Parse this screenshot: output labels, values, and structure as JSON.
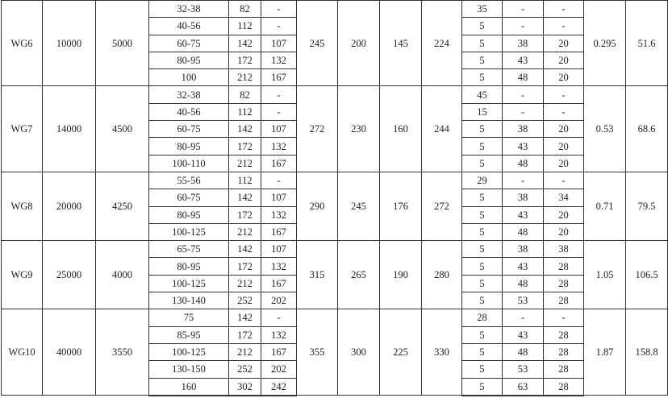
{
  "groups": [
    {
      "model": "WG6",
      "torque": "10000",
      "speed": "5000",
      "c5": "245",
      "c6": "200",
      "c7": "145",
      "c8": "224",
      "c12": "0.295",
      "c13": "51.6",
      "rows": [
        [
          "32-38",
          "82",
          "-",
          "35",
          "-",
          "-"
        ],
        [
          "40-56",
          "112",
          "-",
          "5",
          "-",
          "-"
        ],
        [
          "60-75",
          "142",
          "107",
          "5",
          "38",
          "20"
        ],
        [
          "80-95",
          "172",
          "132",
          "5",
          "43",
          "20"
        ],
        [
          "100",
          "212",
          "167",
          "5",
          "48",
          "20"
        ]
      ]
    },
    {
      "model": "WG7",
      "torque": "14000",
      "speed": "4500",
      "c5": "272",
      "c6": "230",
      "c7": "160",
      "c8": "244",
      "c12": "0.53",
      "c13": "68.6",
      "rows": [
        [
          "32-38",
          "82",
          "-",
          "45",
          "-",
          "-"
        ],
        [
          "40-56",
          "112",
          "-",
          "15",
          "-",
          "-"
        ],
        [
          "60-75",
          "142",
          "107",
          "5",
          "38",
          "20"
        ],
        [
          "80-95",
          "172",
          "132",
          "5",
          "43",
          "20"
        ],
        [
          "100-110",
          "212",
          "167",
          "5",
          "48",
          "20"
        ]
      ]
    },
    {
      "model": "WG8",
      "torque": "20000",
      "speed": "4250",
      "c5": "290",
      "c6": "245",
      "c7": "176",
      "c8": "272",
      "c12": "0.71",
      "c13": "79.5",
      "rows": [
        [
          "55-56",
          "112",
          "-",
          "29",
          "-",
          "-"
        ],
        [
          "60-75",
          "142",
          "107",
          "5",
          "38",
          "34"
        ],
        [
          "80-95",
          "172",
          "132",
          "5",
          "43",
          "20"
        ],
        [
          "100-125",
          "212",
          "167",
          "5",
          "48",
          "20"
        ]
      ]
    },
    {
      "model": "WG9",
      "torque": "25000",
      "speed": "4000",
      "c5": "315",
      "c6": "265",
      "c7": "190",
      "c8": "280",
      "c12": "1.05",
      "c13": "106.5",
      "rows": [
        [
          "65-75",
          "142",
          "107",
          "5",
          "38",
          "38"
        ],
        [
          "80-95",
          "172",
          "132",
          "5",
          "43",
          "28"
        ],
        [
          "100-125",
          "212",
          "167",
          "5",
          "48",
          "28"
        ],
        [
          "130-140",
          "252",
          "202",
          "5",
          "53",
          "28"
        ]
      ]
    },
    {
      "model": "WG10",
      "torque": "40000",
      "speed": "3550",
      "c5": "355",
      "c6": "300",
      "c7": "225",
      "c8": "330",
      "c12": "1.87",
      "c13": "158.8",
      "rows": [
        [
          "75",
          "142",
          "-",
          "28",
          "-",
          "-"
        ],
        [
          "85-95",
          "172",
          "132",
          "5",
          "43",
          "28"
        ],
        [
          "100-125",
          "212",
          "167",
          "5",
          "48",
          "28"
        ],
        [
          "130-150",
          "252",
          "202",
          "5",
          "53",
          "28"
        ],
        [
          "160",
          "302",
          "242",
          "5",
          "63",
          "28"
        ]
      ]
    }
  ]
}
